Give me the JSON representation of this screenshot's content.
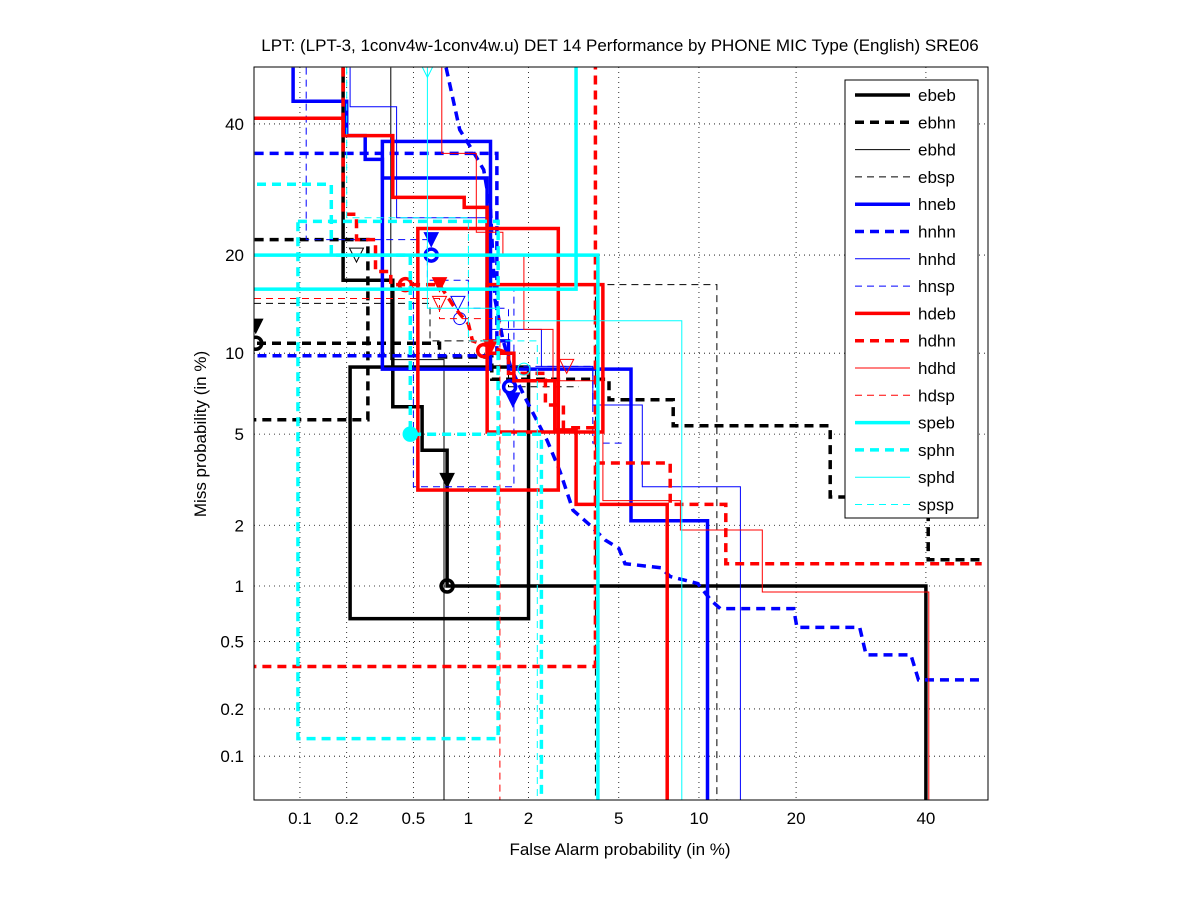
{
  "chart_data": {
    "type": "line",
    "title": "LPT: (LPT-3, 1conv4w-1conv4w.u) DET 14 Performance by PHONE MIC Type (English) SRE06",
    "xlabel": "False Alarm probability (in %)",
    "ylabel": "Miss probability (in %)",
    "xscale": "probit",
    "yscale": "probit",
    "xlim": [
      0.05,
      50
    ],
    "ylim": [
      0.05,
      50
    ],
    "grid": true,
    "legend_position": "top-right",
    "xticks": [
      "0.1",
      "0.2",
      "0.5",
      "1",
      "2",
      "5",
      "10",
      "20",
      "40"
    ],
    "xtick_values": [
      0.1,
      0.2,
      0.5,
      1,
      2,
      5,
      10,
      20,
      40
    ],
    "yticks": [
      "0.1",
      "0.2",
      "0.5",
      "1",
      "2",
      "5",
      "10",
      "20",
      "40"
    ],
    "ytick_values": [
      0.1,
      0.2,
      0.5,
      1,
      2,
      5,
      10,
      20,
      40
    ],
    "colors": {
      "black": "#000000",
      "blue": "#0000ff",
      "red": "#ff0000",
      "cyan": "#00ffff"
    },
    "series": [
      {
        "name": "ebeb",
        "color": "#000000",
        "style": "thick-solid",
        "points": [
          [
            0.19,
            50
          ],
          [
            0.19,
            17
          ],
          [
            0.38,
            17
          ],
          [
            0.38,
            6.4
          ],
          [
            0.56,
            6.4
          ],
          [
            0.56,
            4.3
          ],
          [
            0.77,
            4.3
          ],
          [
            0.77,
            1.0
          ],
          [
            40,
            1.0
          ],
          [
            40,
            0.05
          ]
        ],
        "markers": [
          {
            "type": "circle",
            "fa": 0.77,
            "miss": 1.0
          },
          {
            "type": "triangle-filled",
            "fa": 0.77,
            "miss": 3.2
          }
        ],
        "boxes": [
          [
            0.21,
            2.0,
            0.67,
            8.95
          ]
        ]
      },
      {
        "name": "ebhn",
        "color": "#000000",
        "style": "thick-dashed",
        "points": [
          [
            0.04,
            10.8
          ],
          [
            0.7,
            10.8
          ],
          [
            0.7,
            9.7
          ],
          [
            1.32,
            9.7
          ],
          [
            1.32,
            8.1
          ],
          [
            4.56,
            8.1
          ],
          [
            4.56,
            6.8
          ],
          [
            8.1,
            6.8
          ],
          [
            8.1,
            5.4
          ],
          [
            24.6,
            5.4
          ],
          [
            24.6,
            2.7
          ],
          [
            40.4,
            2.7
          ],
          [
            40.4,
            1.36
          ],
          [
            50,
            1.36
          ]
        ],
        "markers": [
          {
            "type": "circle",
            "fa": 0.05,
            "miss": 10.8
          },
          {
            "type": "triangle-filled",
            "fa": 0.05,
            "miss": 12.3
          }
        ],
        "boxes": [
          [
            0.03,
            0.27,
            5.7,
            22
          ]
        ]
      },
      {
        "name": "ebhd",
        "color": "#000000",
        "style": "thin-solid",
        "points": [
          [
            0.37,
            50
          ],
          [
            0.37,
            9.5
          ],
          [
            0.74,
            9.5
          ],
          [
            0.74,
            0.05
          ]
        ],
        "markers": [],
        "boxes": []
      },
      {
        "name": "ebsp",
        "color": "#000000",
        "style": "thin-dashed",
        "points": [
          [
            0.04,
            14.5
          ],
          [
            0.62,
            14.5
          ],
          [
            0.62,
            11
          ],
          [
            1.6,
            11
          ],
          [
            1.6,
            7.6
          ],
          [
            3.4,
            7.6
          ]
        ],
        "markers": [
          {
            "type": "triangle",
            "fa": 0.23,
            "miss": 20
          }
        ],
        "boxes": [
          [
            4.0,
            11.5,
            0.04,
            16.5
          ]
        ]
      },
      {
        "name": "hneb",
        "color": "#0000ff",
        "style": "thick-solid",
        "points": [
          [
            0.09,
            50
          ],
          [
            0.09,
            44
          ],
          [
            0.2,
            44
          ],
          [
            0.2,
            38
          ],
          [
            0.26,
            38
          ],
          [
            0.26,
            34
          ],
          [
            0.33,
            34
          ],
          [
            0.33,
            31
          ],
          [
            1.25,
            31
          ],
          [
            1.25,
            11
          ],
          [
            1.6,
            11
          ],
          [
            1.6,
            8.8
          ],
          [
            5.6,
            8.8
          ],
          [
            5.6,
            2.1
          ],
          [
            10.7,
            2.1
          ],
          [
            10.7,
            0.04
          ]
        ],
        "markers": [
          {
            "type": "circle",
            "fa": 0.63,
            "miss": 20
          },
          {
            "type": "triangle-filled",
            "fa": 0.63,
            "miss": 22
          }
        ],
        "boxes": [
          [
            0.33,
            1.3,
            8.8,
            37
          ]
        ]
      },
      {
        "name": "hnhn",
        "color": "#0000ff",
        "style": "thick-dashed",
        "points": [
          [
            0.76,
            50
          ],
          [
            0.9,
            39
          ],
          [
            1.05,
            35.5
          ],
          [
            1.2,
            32.3
          ],
          [
            1.3,
            26.2
          ],
          [
            1.33,
            20.6
          ],
          [
            1.37,
            14.9
          ],
          [
            1.5,
            11.1
          ],
          [
            1.65,
            8.8
          ],
          [
            1.95,
            6.8
          ],
          [
            2.45,
            4.7
          ],
          [
            2.8,
            3.5
          ],
          [
            3.2,
            2.35
          ],
          [
            3.8,
            2.0
          ],
          [
            4.4,
            1.7
          ],
          [
            5.0,
            1.55
          ],
          [
            5.3,
            1.3
          ],
          [
            7.3,
            1.24
          ],
          [
            7.9,
            1.12
          ],
          [
            9.9,
            1.03
          ],
          [
            11,
            0.84
          ],
          [
            11.8,
            0.76
          ],
          [
            19.7,
            0.76
          ],
          [
            20.1,
            0.6
          ],
          [
            29,
            0.6
          ],
          [
            30,
            0.42
          ],
          [
            37.4,
            0.42
          ],
          [
            38.7,
            0.3
          ],
          [
            50,
            0.3
          ]
        ],
        "markers": [
          {
            "type": "circle",
            "fa": 1.62,
            "miss": 7.6
          },
          {
            "type": "triangle-filled",
            "fa": 1.68,
            "miss": 6.8
          }
        ],
        "boxes": [
          [
            0.03,
            1.4,
            9.8,
            35
          ]
        ]
      },
      {
        "name": "hnhd",
        "color": "#0000ff",
        "style": "thin-solid",
        "points": [
          [
            0.21,
            50
          ],
          [
            0.21,
            43
          ],
          [
            0.4,
            43
          ],
          [
            0.4,
            25
          ],
          [
            1.3,
            25
          ],
          [
            1.3,
            12
          ],
          [
            2.3,
            12
          ],
          [
            2.3,
            9
          ],
          [
            3.9,
            9
          ],
          [
            3.9,
            6.5
          ],
          [
            6.2,
            6.5
          ],
          [
            6.2,
            3
          ],
          [
            13.7,
            3
          ],
          [
            13.7,
            0.04
          ]
        ],
        "markers": [
          {
            "type": "circle-open",
            "fa": 0.9,
            "miss": 13
          }
        ],
        "boxes": []
      },
      {
        "name": "hnsp",
        "color": "#0000ff",
        "style": "thin-dashed",
        "points": [
          [
            0.11,
            50
          ],
          [
            0.11,
            22
          ],
          [
            0.6,
            22
          ],
          [
            0.6,
            17
          ],
          [
            1.0,
            17
          ],
          [
            1.0,
            14
          ],
          [
            1.6,
            14
          ],
          [
            1.6,
            9
          ],
          [
            3.9,
            9
          ],
          [
            3.9,
            4.6
          ],
          [
            5.3,
            4.6
          ]
        ],
        "markers": [
          {
            "type": "triangle",
            "fa": 0.88,
            "miss": 14.5
          }
        ],
        "boxes": [
          [
            0.5,
            1.7,
            3.0,
            16
          ]
        ]
      },
      {
        "name": "hdeb",
        "color": "#ff0000",
        "style": "thick-solid",
        "points": [
          [
            0.04,
            41
          ],
          [
            0.19,
            41
          ],
          [
            0.19,
            38
          ],
          [
            0.38,
            38
          ],
          [
            0.38,
            28
          ],
          [
            0.95,
            28
          ],
          [
            0.95,
            26.5
          ],
          [
            1.25,
            26.5
          ],
          [
            1.25,
            10
          ],
          [
            1.7,
            10
          ],
          [
            1.7,
            8
          ],
          [
            2.65,
            8
          ],
          [
            2.65,
            5.2
          ],
          [
            3.3,
            5.2
          ],
          [
            3.3,
            2.5
          ],
          [
            7.7,
            2.5
          ],
          [
            7.7,
            0.04
          ]
        ],
        "markers": [
          {
            "type": "circle",
            "fa": 0.45,
            "miss": 16.5
          },
          {
            "type": "triangle-filled",
            "fa": 0.7,
            "miss": 16.5
          }
        ],
        "boxes": [
          [
            0.53,
            2.75,
            2.9,
            23.5
          ],
          [
            1.25,
            4.3,
            5.1,
            16.5
          ]
        ]
      },
      {
        "name": "hdhn",
        "color": "#ff0000",
        "style": "thick-dashed",
        "points": [
          [
            0.19,
            50
          ],
          [
            0.19,
            25.5
          ],
          [
            0.23,
            25.5
          ],
          [
            0.23,
            22
          ],
          [
            0.3,
            22
          ],
          [
            0.3,
            18
          ],
          [
            0.37,
            18
          ],
          [
            0.37,
            16.5
          ],
          [
            0.7,
            16.5
          ],
          [
            0.85,
            14
          ],
          [
            1.0,
            12.5
          ],
          [
            1.05,
            11
          ],
          [
            1.3,
            10.5
          ],
          [
            1.6,
            10
          ],
          [
            1.6,
            8.5
          ],
          [
            2.4,
            8.5
          ],
          [
            2.4,
            6.5
          ],
          [
            2.9,
            6.5
          ],
          [
            2.9,
            5.3
          ],
          [
            4.05,
            5.3
          ],
          [
            4.05,
            3.8
          ],
          [
            7.9,
            3.8
          ],
          [
            7.9,
            2.5
          ],
          [
            12.3,
            2.5
          ],
          [
            12.3,
            1.3
          ],
          [
            50,
            1.3
          ]
        ],
        "markers": [
          {
            "type": "circle",
            "fa": 1.2,
            "miss": 10.2
          },
          {
            "type": "triangle-filled",
            "fa": 1.3,
            "miss": 10.5
          }
        ],
        "boxes": [
          [
            0.03,
            4.0,
            0.36,
            60
          ]
        ]
      },
      {
        "name": "hdhd",
        "color": "#ff0000",
        "style": "thin-solid",
        "points": [
          [
            0.72,
            50
          ],
          [
            0.72,
            35
          ],
          [
            1.1,
            35
          ],
          [
            1.1,
            23
          ],
          [
            1.5,
            23
          ],
          [
            1.5,
            20
          ],
          [
            1.9,
            20
          ],
          [
            1.9,
            12
          ],
          [
            2.6,
            12
          ],
          [
            2.6,
            8
          ],
          [
            4.3,
            8
          ],
          [
            4.3,
            2.6
          ],
          [
            8.6,
            2.6
          ],
          [
            8.6,
            1.9
          ],
          [
            16,
            1.9
          ],
          [
            16,
            0.93
          ],
          [
            40.5,
            0.93
          ],
          [
            40.5,
            0.04
          ]
        ],
        "markers": [],
        "boxes": []
      },
      {
        "name": "hdsp",
        "color": "#ff0000",
        "style": "thin-dashed",
        "points": [
          [
            0.04,
            15
          ],
          [
            0.7,
            15
          ],
          [
            0.7,
            13
          ],
          [
            1.45,
            13
          ],
          [
            1.45,
            0.04
          ]
        ],
        "markers": [
          {
            "type": "triangle",
            "fa": 0.7,
            "miss": 14.5
          },
          {
            "type": "triangle",
            "fa": 3.0,
            "miss": 9
          }
        ],
        "boxes": []
      },
      {
        "name": "speb",
        "color": "#00ffff",
        "style": "thick-solid",
        "points": [
          [
            0.04,
            20
          ],
          [
            4.1,
            20
          ],
          [
            4.1,
            0.04
          ]
        ],
        "markers": [],
        "boxes": [
          [
            0.03,
            3.3,
            16,
            60
          ]
        ]
      },
      {
        "name": "sphn",
        "color": "#00ffff",
        "style": "thick-dashed",
        "points": [
          [
            0.04,
            30
          ],
          [
            0.16,
            30
          ],
          [
            0.16,
            20
          ],
          [
            0.48,
            20
          ],
          [
            0.48,
            5
          ],
          [
            2.3,
            5
          ],
          [
            2.3,
            0.04
          ]
        ],
        "markers": [
          {
            "type": "circle-filled",
            "fa": 0.48,
            "miss": 5
          }
        ],
        "boxes": [
          [
            0.097,
            1.42,
            0.13,
            24.5
          ]
        ]
      },
      {
        "name": "sphd",
        "color": "#00ffff",
        "style": "thin-solid",
        "points": [
          [
            0.6,
            50
          ],
          [
            0.6,
            14
          ],
          [
            1.4,
            14
          ],
          [
            1.4,
            12.8
          ],
          [
            8.7,
            12.8
          ],
          [
            8.7,
            0.04
          ]
        ],
        "markers": [
          {
            "type": "triangle",
            "fa": 0.6,
            "miss": 49.5
          },
          {
            "type": "circle-open",
            "fa": 1.9,
            "miss": 8.8
          }
        ],
        "boxes": []
      },
      {
        "name": "spsp",
        "color": "#00ffff",
        "style": "thin-dashed",
        "points": [
          [
            0.2,
            50
          ],
          [
            0.2,
            25
          ],
          [
            1.0,
            25
          ],
          [
            1.0,
            11
          ],
          [
            2.2,
            11
          ],
          [
            2.2,
            0.04
          ]
        ],
        "markers": [],
        "boxes": []
      }
    ]
  }
}
